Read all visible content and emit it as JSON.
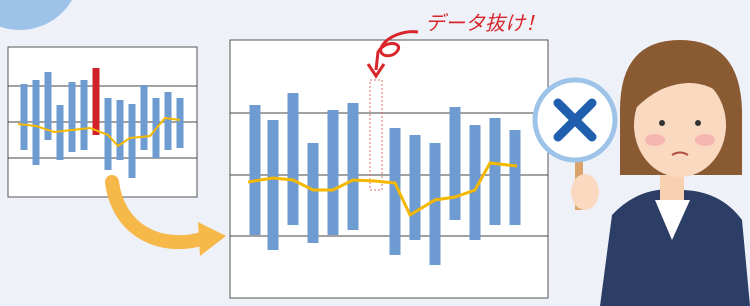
{
  "annotation": "データ抜け！"
}
